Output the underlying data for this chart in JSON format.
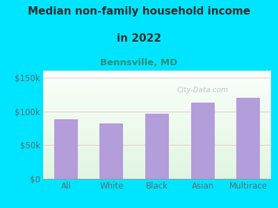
{
  "title_line1": "Median non-family household income",
  "title_line2": "in 2022",
  "subtitle": "Bennsville, MD",
  "categories": [
    "All",
    "White",
    "Black",
    "Asian",
    "Multirace"
  ],
  "values": [
    88000,
    82000,
    96000,
    113000,
    120000
  ],
  "bar_color": "#b39ddb",
  "title_color": "#2d2d2d",
  "subtitle_color": "#2e8b72",
  "background_color": "#00e5ff",
  "tick_color": "#5a6a72",
  "yticks": [
    0,
    50000,
    100000,
    150000
  ],
  "ytick_labels": [
    "$0",
    "$50k",
    "$100k",
    "$150k"
  ],
  "ylim": [
    0,
    160000
  ],
  "watermark": "City-Data.com",
  "watermark_color": "#aabbc5",
  "grid_color": "#d0e8d0",
  "plot_bg_color": "#eaf4e8"
}
